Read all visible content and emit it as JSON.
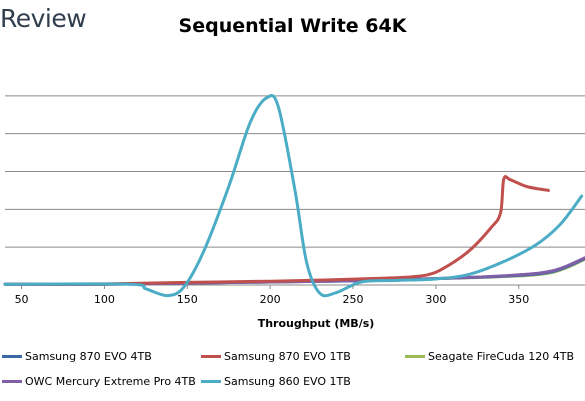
{
  "brand": {
    "text": "Review"
  },
  "chart_data": {
    "type": "line",
    "title": "Sequential Write 64K",
    "xlabel": "Throughput (MB/s)",
    "ylabel": "",
    "xlim": [
      40,
      390
    ],
    "ylim": [
      0,
      6
    ],
    "x_ticks": [
      50,
      100,
      150,
      200,
      250,
      300,
      350
    ],
    "y_gridlines": [
      1,
      2,
      3,
      4,
      5
    ],
    "grid": "horizontal",
    "legend_position": "bottom",
    "series": [
      {
        "name": "Samsung 870 EVO 4TB",
        "color": "#3a68a8",
        "points": [
          [
            40,
            0.02
          ],
          [
            100,
            0.02
          ],
          [
            150,
            0.05
          ],
          [
            200,
            0.08
          ],
          [
            250,
            0.11
          ],
          [
            300,
            0.17
          ],
          [
            340,
            0.23
          ],
          [
            370,
            0.35
          ],
          [
            390,
            0.7
          ]
        ]
      },
      {
        "name": "Samsung 870 EVO 1TB",
        "color": "#c0504d",
        "points": [
          [
            40,
            0.02
          ],
          [
            100,
            0.03
          ],
          [
            150,
            0.07
          ],
          [
            200,
            0.1
          ],
          [
            230,
            0.13
          ],
          [
            260,
            0.17
          ],
          [
            280,
            0.2
          ],
          [
            295,
            0.27
          ],
          [
            305,
            0.45
          ],
          [
            320,
            0.9
          ],
          [
            333,
            1.5
          ],
          [
            339,
            1.9
          ],
          [
            341,
            2.8
          ],
          [
            345,
            2.78
          ],
          [
            355,
            2.6
          ],
          [
            368,
            2.5
          ]
        ]
      },
      {
        "name": "Seagate FireCuda 120 4TB",
        "color": "#9bbb59",
        "points": [
          [
            40,
            0.02
          ],
          [
            100,
            0.02
          ],
          [
            150,
            0.05
          ],
          [
            200,
            0.08
          ],
          [
            250,
            0.11
          ],
          [
            300,
            0.17
          ],
          [
            340,
            0.22
          ],
          [
            370,
            0.33
          ],
          [
            390,
            0.68
          ]
        ]
      },
      {
        "name": "OWC Mercury Extreme Pro 4TB",
        "color": "#7f5fa8",
        "points": [
          [
            40,
            0.02
          ],
          [
            100,
            0.02
          ],
          [
            150,
            0.05
          ],
          [
            200,
            0.08
          ],
          [
            250,
            0.11
          ],
          [
            300,
            0.17
          ],
          [
            340,
            0.24
          ],
          [
            370,
            0.37
          ],
          [
            390,
            0.72
          ]
        ]
      },
      {
        "name": "Samsung 860 EVO 1TB",
        "color": "#4bacc6",
        "points": [
          [
            40,
            0.02
          ],
          [
            115,
            0.02
          ],
          [
            125,
            -0.1
          ],
          [
            138,
            -0.28
          ],
          [
            148,
            -0.05
          ],
          [
            160,
            0.9
          ],
          [
            175,
            2.6
          ],
          [
            188,
            4.3
          ],
          [
            198,
            4.95
          ],
          [
            205,
            4.7
          ],
          [
            215,
            2.5
          ],
          [
            222,
            0.6
          ],
          [
            230,
            -0.22
          ],
          [
            240,
            -0.2
          ],
          [
            255,
            0.08
          ],
          [
            275,
            0.12
          ],
          [
            300,
            0.16
          ],
          [
            320,
            0.28
          ],
          [
            340,
            0.6
          ],
          [
            360,
            1.05
          ],
          [
            375,
            1.6
          ],
          [
            388,
            2.35
          ]
        ]
      }
    ]
  }
}
